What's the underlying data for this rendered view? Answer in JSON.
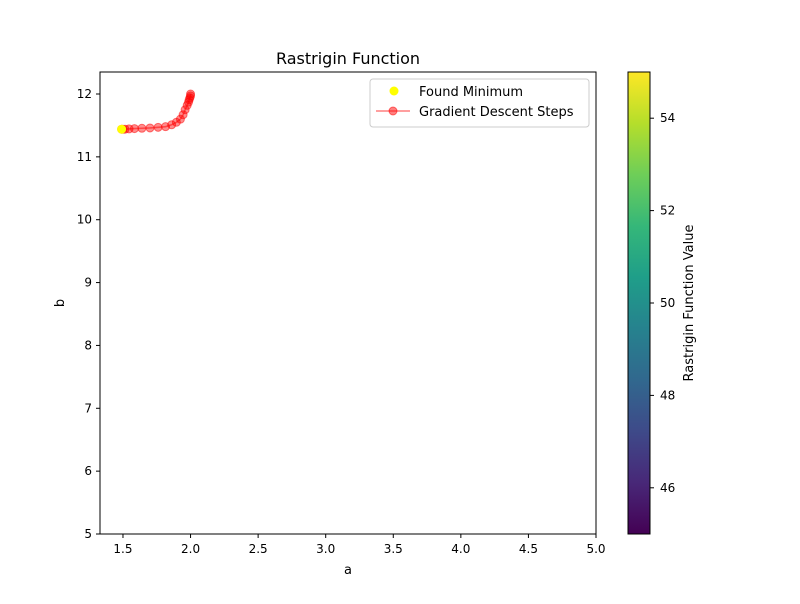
{
  "chart_data": {
    "type": "scatter",
    "title": "Rastrigin Function",
    "xlabel": "a",
    "ylabel": "b",
    "xlim": [
      1.33,
      5.0
    ],
    "ylim": [
      5.0,
      12.35
    ],
    "x_ticks": [
      1.5,
      2.0,
      2.5,
      3.0,
      3.5,
      4.0,
      4.5,
      5.0
    ],
    "y_ticks": [
      5,
      6,
      7,
      8,
      9,
      10,
      11,
      12
    ],
    "x_tick_labels": [
      "1.5",
      "2.0",
      "2.5",
      "3.0",
      "3.5",
      "4.0",
      "4.5",
      "5.0"
    ],
    "y_tick_labels": [
      "5",
      "6",
      "7",
      "8",
      "9",
      "10",
      "11",
      "12"
    ],
    "grid": false,
    "legend_position": "top-right",
    "series": [
      {
        "name": "Found Minimum",
        "kind": "scatter",
        "color": "#ffff00",
        "x": [
          1.49
        ],
        "y": [
          11.44
        ]
      },
      {
        "name": "Gradient Descent Steps",
        "kind": "line-marker",
        "color": "#ff0000",
        "x": [
          2.0,
          2.0,
          1.995,
          1.99,
          1.985,
          1.975,
          1.96,
          1.945,
          1.925,
          1.895,
          1.86,
          1.815,
          1.76,
          1.7,
          1.64,
          1.585,
          1.545,
          1.515,
          1.5,
          1.49
        ],
        "y": [
          12.0,
          11.97,
          11.94,
          11.91,
          11.87,
          11.82,
          11.75,
          11.67,
          11.6,
          11.55,
          11.51,
          11.48,
          11.47,
          11.46,
          11.455,
          11.45,
          11.445,
          11.44,
          11.44,
          11.44
        ]
      }
    ],
    "colorbar": {
      "label": "Rastrigin Function Value",
      "range": [
        45.0,
        55.0
      ],
      "ticks": [
        46,
        48,
        50,
        52,
        54
      ],
      "tick_labels": [
        "46",
        "48",
        "50",
        "52",
        "54"
      ],
      "colormap": [
        "#440154",
        "#482878",
        "#3e4a89",
        "#31688e",
        "#26828e",
        "#1f9e89",
        "#35b779",
        "#6ece58",
        "#b5de2b",
        "#fde725"
      ]
    }
  }
}
